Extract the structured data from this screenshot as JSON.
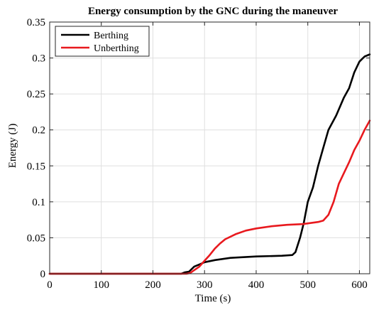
{
  "chart_data": {
    "type": "line",
    "title": "Energy consumption by the GNC during the maneuver",
    "xlabel": "Time (s)",
    "ylabel": "Energy (J)",
    "xlim": [
      0,
      620
    ],
    "ylim": [
      0,
      0.35
    ],
    "x_ticks": [
      0,
      100,
      200,
      300,
      400,
      500,
      600
    ],
    "y_ticks": [
      0,
      0.05,
      0.1,
      0.15,
      0.2,
      0.25,
      0.3,
      0.35
    ],
    "x_tick_labels": [
      "0",
      "100",
      "200",
      "300",
      "400",
      "500",
      "600"
    ],
    "y_tick_labels": [
      "0",
      "0.05",
      "0.1",
      "0.15",
      "0.2",
      "0.25",
      "0.3",
      "0.35"
    ],
    "grid": true,
    "legend_position": "top-left",
    "series": [
      {
        "name": "Berthing",
        "color": "#000000",
        "points": [
          [
            0,
            0
          ],
          [
            255,
            0
          ],
          [
            262,
            0.002
          ],
          [
            270,
            0.003
          ],
          [
            280,
            0.01
          ],
          [
            290,
            0.013
          ],
          [
            300,
            0.016
          ],
          [
            320,
            0.019
          ],
          [
            350,
            0.022
          ],
          [
            400,
            0.024
          ],
          [
            450,
            0.025
          ],
          [
            470,
            0.026
          ],
          [
            476,
            0.03
          ],
          [
            485,
            0.05
          ],
          [
            492,
            0.07
          ],
          [
            500,
            0.1
          ],
          [
            510,
            0.12
          ],
          [
            520,
            0.15
          ],
          [
            530,
            0.175
          ],
          [
            540,
            0.2
          ],
          [
            555,
            0.22
          ],
          [
            570,
            0.245
          ],
          [
            580,
            0.258
          ],
          [
            590,
            0.28
          ],
          [
            600,
            0.295
          ],
          [
            610,
            0.302
          ],
          [
            620,
            0.305
          ]
        ]
      },
      {
        "name": "Unberthing",
        "color": "#e8191e",
        "points": [
          [
            0,
            0
          ],
          [
            265,
            0
          ],
          [
            272,
            0.001
          ],
          [
            280,
            0.005
          ],
          [
            290,
            0.01
          ],
          [
            300,
            0.018
          ],
          [
            310,
            0.026
          ],
          [
            320,
            0.035
          ],
          [
            330,
            0.042
          ],
          [
            340,
            0.048
          ],
          [
            360,
            0.055
          ],
          [
            380,
            0.06
          ],
          [
            400,
            0.063
          ],
          [
            430,
            0.066
          ],
          [
            460,
            0.068
          ],
          [
            490,
            0.069
          ],
          [
            520,
            0.072
          ],
          [
            530,
            0.074
          ],
          [
            540,
            0.082
          ],
          [
            550,
            0.1
          ],
          [
            560,
            0.125
          ],
          [
            570,
            0.14
          ],
          [
            580,
            0.155
          ],
          [
            590,
            0.172
          ],
          [
            600,
            0.185
          ],
          [
            610,
            0.2
          ],
          [
            620,
            0.213
          ]
        ]
      }
    ]
  }
}
